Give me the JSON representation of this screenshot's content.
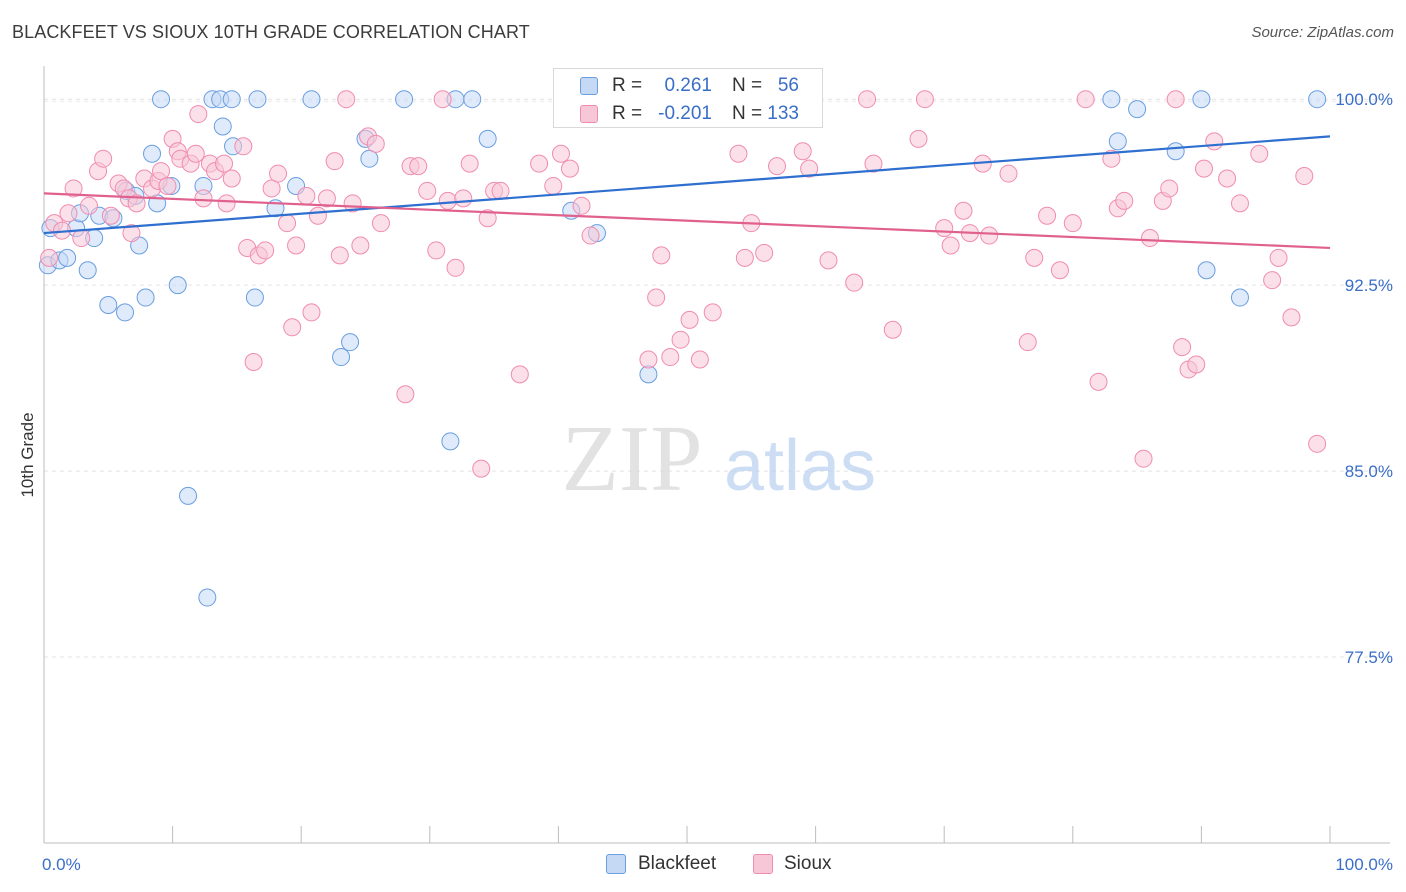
{
  "title": "BLACKFEET VS SIOUX 10TH GRADE CORRELATION CHART",
  "source": "Source: ZipAtlas.com",
  "watermark": {
    "zip": "ZIP",
    "atlas": "atlas"
  },
  "legend": {
    "r_label": "R =",
    "n_label": "N =",
    "rows": [
      {
        "r": "0.261",
        "n": "56"
      },
      {
        "r": "-0.201",
        "n": "133"
      }
    ]
  },
  "chart_data": {
    "type": "scatter",
    "title": "BLACKFEET VS SIOUX 10TH GRADE CORRELATION CHART",
    "xlabel": "",
    "ylabel": "10th Grade",
    "xlim": [
      0,
      100
    ],
    "ylim": [
      70,
      101.5
    ],
    "x_tick_labels": [
      "0.0%",
      "100.0%"
    ],
    "y_ticks": [
      77.5,
      85.0,
      92.5,
      100.0
    ],
    "y_tick_labels": [
      "77.5%",
      "85.0%",
      "92.5%",
      "100.0%"
    ],
    "grid": true,
    "legend_placement": "bottom-center",
    "series": [
      {
        "name": "Blackfeet",
        "color": "#6a9ee0",
        "fill": "#c5d9f5",
        "r": 0.261,
        "n": 56,
        "trend": {
          "x": [
            0,
            100
          ],
          "y": [
            94.6,
            98.5
          ]
        },
        "points": [
          [
            0.3,
            93.3
          ],
          [
            0.5,
            94.8
          ],
          [
            1.2,
            93.5
          ],
          [
            1.8,
            93.6
          ],
          [
            2.5,
            94.8
          ],
          [
            2.8,
            95.4
          ],
          [
            3.4,
            93.1
          ],
          [
            3.9,
            94.4
          ],
          [
            4.3,
            95.3
          ],
          [
            5.0,
            91.7
          ],
          [
            5.4,
            95.2
          ],
          [
            6.3,
            91.4
          ],
          [
            6.4,
            96.3
          ],
          [
            7.1,
            96.1
          ],
          [
            7.4,
            94.1
          ],
          [
            7.9,
            92.0
          ],
          [
            8.4,
            97.8
          ],
          [
            8.8,
            95.8
          ],
          [
            9.1,
            100.0
          ],
          [
            9.9,
            96.5
          ],
          [
            10.4,
            92.5
          ],
          [
            11.2,
            84.0
          ],
          [
            12.4,
            96.5
          ],
          [
            12.7,
            79.9
          ],
          [
            13.1,
            100.0
          ],
          [
            13.7,
            100.0
          ],
          [
            13.9,
            98.9
          ],
          [
            14.6,
            100.0
          ],
          [
            14.7,
            98.1
          ],
          [
            16.4,
            92.0
          ],
          [
            16.6,
            100.0
          ],
          [
            18.0,
            95.6
          ],
          [
            19.6,
            96.5
          ],
          [
            20.8,
            100.0
          ],
          [
            23.1,
            89.6
          ],
          [
            23.8,
            90.2
          ],
          [
            25.0,
            98.4
          ],
          [
            25.3,
            97.6
          ],
          [
            28.0,
            100.0
          ],
          [
            31.6,
            86.2
          ],
          [
            32.0,
            100.0
          ],
          [
            33.3,
            100.0
          ],
          [
            34.5,
            98.4
          ],
          [
            41.0,
            95.5
          ],
          [
            43.0,
            94.6
          ],
          [
            47.0,
            88.9
          ],
          [
            49.0,
            100.0
          ],
          [
            55.0,
            100.0
          ],
          [
            83.0,
            100.0
          ],
          [
            83.5,
            98.3
          ],
          [
            85.0,
            99.6
          ],
          [
            88.0,
            97.9
          ],
          [
            90.0,
            100.0
          ],
          [
            90.4,
            93.1
          ],
          [
            93.0,
            92.0
          ],
          [
            99.0,
            100.0
          ]
        ]
      },
      {
        "name": "Sioux",
        "color": "#f08cb0",
        "fill": "#f7c6d7",
        "r": -0.201,
        "n": 133,
        "trend": {
          "x": [
            0,
            100
          ],
          "y": [
            96.2,
            94.0
          ]
        },
        "points": [
          [
            0.4,
            93.6
          ],
          [
            0.8,
            95.0
          ],
          [
            1.4,
            94.7
          ],
          [
            1.9,
            95.4
          ],
          [
            2.3,
            96.4
          ],
          [
            2.9,
            94.4
          ],
          [
            3.5,
            95.7
          ],
          [
            4.2,
            97.1
          ],
          [
            4.6,
            97.6
          ],
          [
            5.2,
            95.3
          ],
          [
            5.8,
            96.6
          ],
          [
            6.2,
            96.4
          ],
          [
            6.6,
            96.0
          ],
          [
            6.8,
            94.6
          ],
          [
            7.2,
            95.8
          ],
          [
            7.8,
            96.8
          ],
          [
            8.4,
            96.4
          ],
          [
            8.9,
            96.7
          ],
          [
            9.1,
            97.1
          ],
          [
            9.6,
            96.5
          ],
          [
            10.0,
            98.4
          ],
          [
            10.4,
            97.9
          ],
          [
            10.6,
            97.6
          ],
          [
            11.4,
            97.4
          ],
          [
            11.8,
            97.8
          ],
          [
            12.0,
            99.4
          ],
          [
            12.4,
            96.0
          ],
          [
            12.9,
            97.4
          ],
          [
            13.3,
            97.1
          ],
          [
            14.0,
            97.4
          ],
          [
            14.2,
            95.8
          ],
          [
            14.6,
            96.8
          ],
          [
            15.5,
            98.1
          ],
          [
            15.8,
            94.0
          ],
          [
            16.3,
            89.4
          ],
          [
            16.7,
            93.7
          ],
          [
            17.2,
            93.9
          ],
          [
            17.7,
            96.4
          ],
          [
            18.2,
            97.0
          ],
          [
            18.9,
            95.0
          ],
          [
            19.3,
            90.8
          ],
          [
            19.6,
            94.1
          ],
          [
            20.4,
            96.1
          ],
          [
            20.8,
            91.4
          ],
          [
            21.3,
            95.3
          ],
          [
            22.0,
            96.0
          ],
          [
            22.6,
            97.5
          ],
          [
            23.0,
            93.7
          ],
          [
            23.5,
            100.0
          ],
          [
            24.0,
            95.8
          ],
          [
            24.6,
            94.1
          ],
          [
            25.2,
            98.5
          ],
          [
            25.8,
            98.2
          ],
          [
            26.2,
            95.0
          ],
          [
            28.1,
            88.1
          ],
          [
            28.5,
            97.3
          ],
          [
            29.1,
            97.3
          ],
          [
            29.8,
            96.3
          ],
          [
            30.5,
            93.9
          ],
          [
            31.0,
            100.0
          ],
          [
            31.4,
            95.9
          ],
          [
            32.0,
            93.2
          ],
          [
            32.6,
            96.0
          ],
          [
            33.1,
            97.4
          ],
          [
            34.0,
            85.1
          ],
          [
            34.5,
            95.2
          ],
          [
            35.0,
            96.3
          ],
          [
            35.5,
            96.3
          ],
          [
            37.0,
            88.9
          ],
          [
            38.5,
            97.4
          ],
          [
            39.6,
            96.5
          ],
          [
            40.2,
            97.8
          ],
          [
            40.9,
            97.2
          ],
          [
            41.8,
            95.7
          ],
          [
            42.5,
            94.5
          ],
          [
            44.3,
            100.0
          ],
          [
            47.0,
            89.5
          ],
          [
            47.6,
            92.0
          ],
          [
            48.0,
            93.7
          ],
          [
            48.7,
            89.6
          ],
          [
            49.5,
            90.3
          ],
          [
            50.2,
            91.1
          ],
          [
            51.0,
            89.5
          ],
          [
            52.0,
            91.4
          ],
          [
            54.0,
            97.8
          ],
          [
            54.5,
            93.6
          ],
          [
            55.0,
            95.0
          ],
          [
            56.0,
            93.8
          ],
          [
            57.0,
            97.3
          ],
          [
            59.0,
            97.9
          ],
          [
            59.5,
            97.2
          ],
          [
            61.0,
            93.5
          ],
          [
            63.0,
            92.6
          ],
          [
            64.0,
            100.0
          ],
          [
            64.5,
            97.4
          ],
          [
            66.0,
            90.7
          ],
          [
            68.0,
            98.4
          ],
          [
            68.5,
            100.0
          ],
          [
            70.0,
            94.8
          ],
          [
            70.5,
            94.1
          ],
          [
            71.5,
            95.5
          ],
          [
            72.0,
            94.6
          ],
          [
            73.0,
            97.4
          ],
          [
            73.5,
            94.5
          ],
          [
            75.0,
            97.0
          ],
          [
            76.5,
            90.2
          ],
          [
            77.0,
            93.6
          ],
          [
            78.0,
            95.3
          ],
          [
            79.0,
            93.1
          ],
          [
            80.0,
            95.0
          ],
          [
            81.0,
            100.0
          ],
          [
            82.0,
            88.6
          ],
          [
            83.0,
            97.6
          ],
          [
            83.5,
            95.6
          ],
          [
            84.0,
            95.9
          ],
          [
            85.5,
            85.5
          ],
          [
            86.0,
            94.4
          ],
          [
            87.0,
            95.9
          ],
          [
            87.5,
            96.4
          ],
          [
            88.0,
            100.0
          ],
          [
            88.5,
            90.0
          ],
          [
            89.0,
            89.1
          ],
          [
            89.6,
            89.3
          ],
          [
            90.2,
            97.2
          ],
          [
            91.0,
            98.3
          ],
          [
            92.0,
            96.8
          ],
          [
            93.0,
            95.8
          ],
          [
            94.5,
            97.8
          ],
          [
            95.5,
            92.7
          ],
          [
            96.0,
            93.6
          ],
          [
            97.0,
            91.2
          ],
          [
            98.0,
            96.9
          ],
          [
            99.0,
            86.1
          ]
        ]
      }
    ]
  }
}
